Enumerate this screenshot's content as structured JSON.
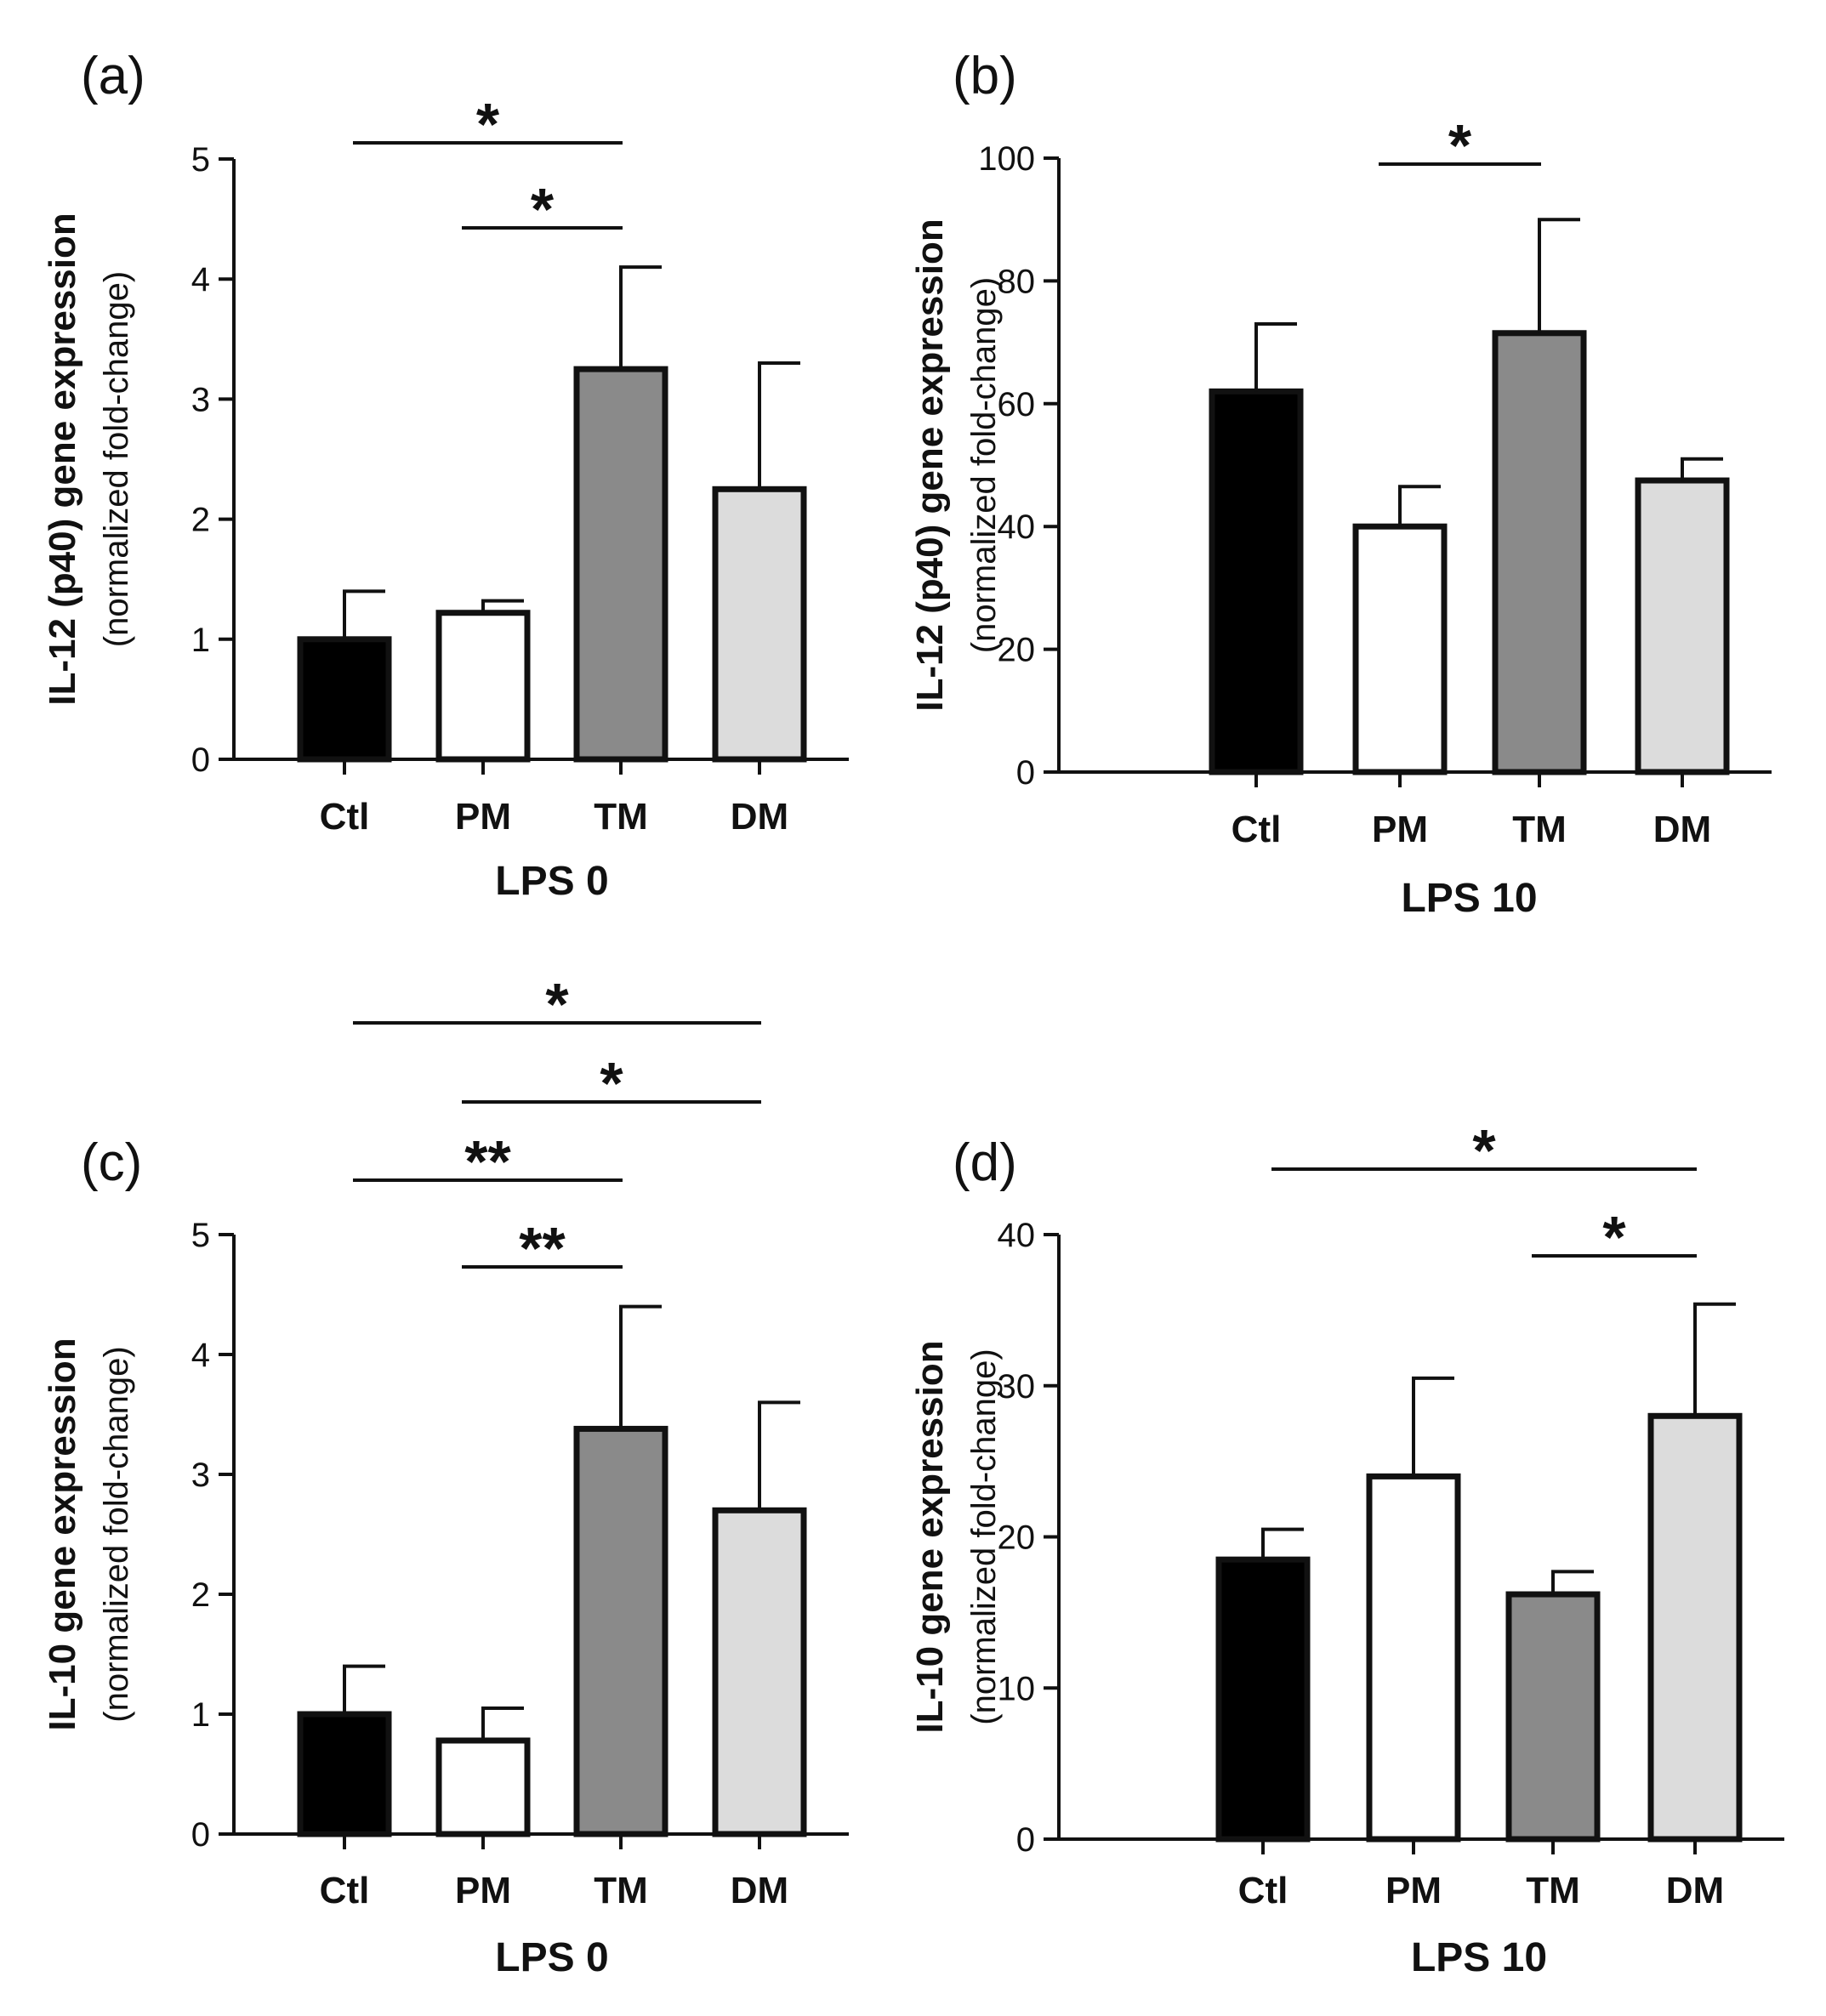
{
  "chart_data": [
    {
      "type": "bar",
      "panel": "(a)",
      "title": "",
      "xlabel": "LPS 0",
      "ylabel": "IL-12 (p40) gene expression",
      "ylabel_sub": "(normalized fold-change)",
      "ylim": [
        0,
        5
      ],
      "yticks": [
        0,
        1,
        2,
        3,
        4,
        5
      ],
      "ytick_labels": [
        "0",
        "1",
        "2",
        "3",
        "4",
        "5"
      ],
      "categories": [
        "Ctl",
        "PM",
        "TM",
        "DM"
      ],
      "values": [
        1.0,
        1.22,
        3.25,
        2.25
      ],
      "errors": [
        0.4,
        0.1,
        0.85,
        1.05
      ],
      "colors": [
        "#000000",
        "#ffffff",
        "#8a8a8a",
        "#dcdcdc"
      ],
      "significance": [
        {
          "from": "Ctl",
          "to": "TM",
          "label": "*"
        },
        {
          "from": "PM",
          "to": "TM",
          "label": "*"
        }
      ]
    },
    {
      "type": "bar",
      "panel": "(b)",
      "title": "",
      "xlabel": "LPS 10",
      "ylabel": "IL-12 (p40) gene expression",
      "ylabel_sub": "(normalized fold-change)",
      "ylim": [
        0,
        100
      ],
      "yticks": [
        0,
        20,
        40,
        60,
        80,
        100
      ],
      "ytick_labels": [
        "0",
        "20",
        "40",
        "60",
        "80",
        "100"
      ],
      "categories": [
        "Ctl",
        "PM",
        "TM",
        "DM"
      ],
      "values": [
        62,
        40,
        71.5,
        47.5
      ],
      "errors": [
        11,
        6.5,
        18.5,
        3.5
      ],
      "colors": [
        "#000000",
        "#ffffff",
        "#8a8a8a",
        "#dcdcdc"
      ],
      "significance": [
        {
          "from": "PM",
          "to": "TM",
          "label": "*"
        }
      ]
    },
    {
      "type": "bar",
      "panel": "(c)",
      "title": "",
      "xlabel": "LPS 0",
      "ylabel": "IL-10 gene expression",
      "ylabel_sub": "(normalized fold-change)",
      "ylim": [
        0,
        5
      ],
      "yticks": [
        0,
        1,
        2,
        3,
        4,
        5
      ],
      "ytick_labels": [
        "0",
        "1",
        "2",
        "3",
        "4",
        "5"
      ],
      "categories": [
        "Ctl",
        "PM",
        "TM",
        "DM"
      ],
      "values": [
        1.0,
        0.78,
        3.38,
        2.7
      ],
      "errors": [
        0.4,
        0.27,
        1.02,
        0.9
      ],
      "colors": [
        "#000000",
        "#ffffff",
        "#8a8a8a",
        "#dcdcdc"
      ],
      "significance": [
        {
          "from": "Ctl",
          "to": "DM",
          "label": "*"
        },
        {
          "from": "PM",
          "to": "DM",
          "label": "*"
        },
        {
          "from": "Ctl",
          "to": "TM",
          "label": "**"
        },
        {
          "from": "PM",
          "to": "TM",
          "label": "**"
        }
      ]
    },
    {
      "type": "bar",
      "panel": "(d)",
      "title": "",
      "xlabel": "LPS 10",
      "ylabel": "IL-10 gene expression",
      "ylabel_sub": "(normalized fold-change)",
      "ylim": [
        0,
        40
      ],
      "yticks": [
        0,
        10,
        20,
        30,
        40
      ],
      "ytick_labels": [
        "0",
        "10",
        "20",
        "30",
        "40"
      ],
      "categories": [
        "Ctl",
        "PM",
        "TM",
        "DM"
      ],
      "values": [
        18.5,
        24,
        16.2,
        28
      ],
      "errors": [
        2,
        6.5,
        1.5,
        7.4
      ],
      "colors": [
        "#000000",
        "#ffffff",
        "#8a8a8a",
        "#dcdcdc"
      ],
      "significance": [
        {
          "from": "Ctl",
          "to": "DM",
          "label": "*"
        },
        {
          "from": "TM",
          "to": "DM",
          "label": "*"
        }
      ]
    }
  ]
}
